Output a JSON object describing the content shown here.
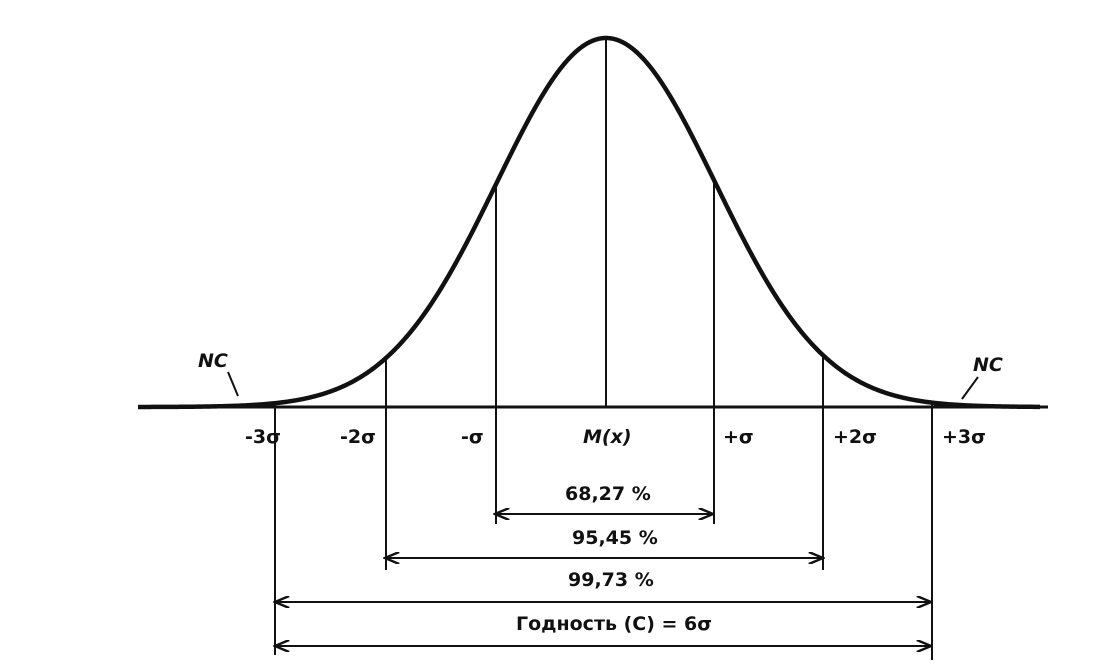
{
  "diagram": {
    "curve": "normal-distribution",
    "tails_shaded": true,
    "tick_labels": {
      "minus3": "-3σ",
      "minus2": "-2σ",
      "minus1": "-σ",
      "mean": "M(x)",
      "plus1": "+σ",
      "plus2": "+2σ",
      "plus3": "+3σ"
    },
    "tail_labels": {
      "left": "NC",
      "right": "NC"
    },
    "ranges": {
      "one_sigma": "68,27 %",
      "two_sigma": "95,45 %",
      "three_sigma": "99,73 %",
      "fitness": "Годность (С) = 6σ"
    }
  }
}
